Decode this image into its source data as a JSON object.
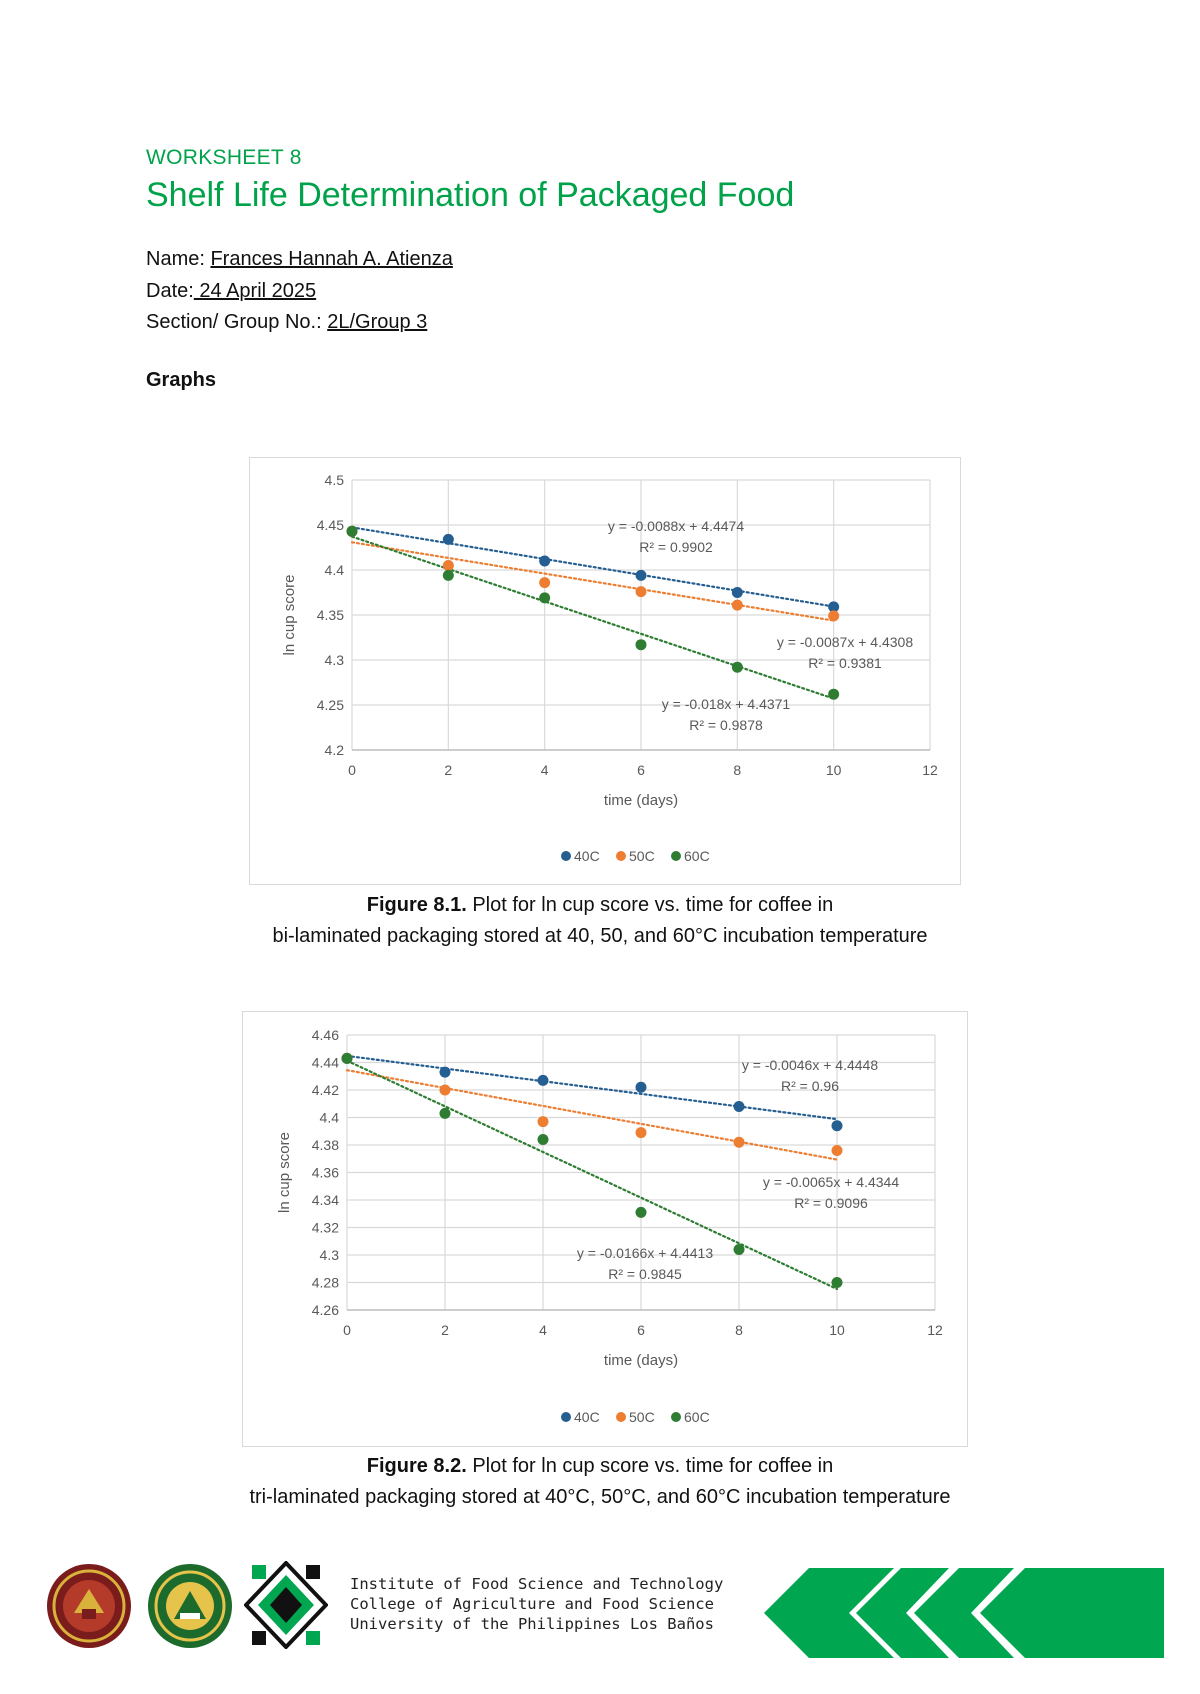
{
  "header": {
    "worksheet": "WORKSHEET 8",
    "title": "Shelf Life Determination of Packaged Food"
  },
  "meta": {
    "name_label": "Name:",
    "name_value": "Frances Hannah A. Atienza",
    "date_label": "Date:",
    "date_value": " 24 April 2025",
    "section_label": "Section/ Group No.:",
    "section_value": "2L/Group 3"
  },
  "section_heading": "Graphs",
  "chart_data": [
    {
      "type": "scatter",
      "xlabel": "time (days)",
      "ylabel": "ln cup score",
      "xlim": [
        0,
        12
      ],
      "ylim": [
        4.2,
        4.5
      ],
      "xticks": [
        "0",
        "2",
        "4",
        "6",
        "8",
        "10",
        "12"
      ],
      "yticks": [
        "4.2",
        "4.25",
        "4.3",
        "4.35",
        "4.4",
        "4.45",
        "4.5"
      ],
      "grid": true,
      "legend_position": "bottom",
      "trendline": "linear dotted",
      "series": [
        {
          "name": "40C",
          "color": "#255e91",
          "x": [
            0,
            2,
            4,
            6,
            8,
            10
          ],
          "y": [
            4.443,
            4.434,
            4.41,
            4.394,
            4.375,
            4.359
          ],
          "slope": -0.0088,
          "intercept": 4.4474,
          "equation": "y = -0.0088x + 4.4474",
          "r2": "R² = 0.9902"
        },
        {
          "name": "50C",
          "color": "#ed7d31",
          "x": [
            0,
            2,
            4,
            6,
            8,
            10
          ],
          "y": [
            4.443,
            4.405,
            4.386,
            4.376,
            4.361,
            4.349
          ],
          "slope": -0.0087,
          "intercept": 4.4308,
          "equation": "y = -0.0087x + 4.4308",
          "r2": "R² = 0.9381"
        },
        {
          "name": "60C",
          "color": "#2e7d32",
          "x": [
            0,
            2,
            4,
            6,
            8,
            10
          ],
          "y": [
            4.443,
            4.394,
            4.369,
            4.317,
            4.292,
            4.262
          ],
          "slope": -0.018,
          "intercept": 4.4371,
          "equation": "y = -0.018x + 4.4371",
          "r2": "R² = 0.9878"
        }
      ]
    },
    {
      "type": "scatter",
      "xlabel": "time (days)",
      "ylabel": "ln cup score",
      "xlim": [
        0,
        12
      ],
      "ylim": [
        4.26,
        4.46
      ],
      "xticks": [
        "0",
        "2",
        "4",
        "6",
        "8",
        "10",
        "12"
      ],
      "yticks": [
        "4.26",
        "4.28",
        "4.3",
        "4.32",
        "4.34",
        "4.36",
        "4.38",
        "4.4",
        "4.42",
        "4.44",
        "4.46"
      ],
      "grid": true,
      "legend_position": "bottom",
      "trendline": "linear dotted",
      "series": [
        {
          "name": "40C",
          "color": "#255e91",
          "x": [
            0,
            2,
            4,
            6,
            8,
            10
          ],
          "y": [
            4.443,
            4.433,
            4.427,
            4.422,
            4.408,
            4.394
          ],
          "slope": -0.0046,
          "intercept": 4.4448,
          "equation": "y = -0.0046x + 4.4448",
          "r2": "R² = 0.96"
        },
        {
          "name": "50C",
          "color": "#ed7d31",
          "x": [
            0,
            2,
            4,
            6,
            8,
            10
          ],
          "y": [
            4.443,
            4.42,
            4.397,
            4.389,
            4.382,
            4.376
          ],
          "slope": -0.0065,
          "intercept": 4.4344,
          "equation": "y = -0.0065x + 4.4344",
          "r2": "R² = 0.9096"
        },
        {
          "name": "60C",
          "color": "#2e7d32",
          "x": [
            0,
            2,
            4,
            6,
            8,
            10
          ],
          "y": [
            4.443,
            4.403,
            4.384,
            4.331,
            4.304,
            4.28
          ],
          "slope": -0.0166,
          "intercept": 4.4413,
          "equation": "y = -0.0166x + 4.4413",
          "r2": "R² = 0.9845"
        }
      ]
    }
  ],
  "figure1": {
    "label": "Figure 8.1.",
    "line1": " Plot for ln cup score vs. time for coffee in",
    "line2": "bi-laminated packaging stored at 40, 50, and 60°C incubation temperature"
  },
  "figure2": {
    "label": "Figure 8.2.",
    "line1": " Plot for ln cup score vs. time for coffee in",
    "line2": "tri-laminated packaging stored at 40°C, 50°C, and 60°C incubation temperature"
  },
  "footer": {
    "institute": "Institute of Food Science and Technology",
    "college": "College of Agriculture and Food Science",
    "university": "University of the Philippines Los Baños",
    "brand_color": "#00a650"
  }
}
